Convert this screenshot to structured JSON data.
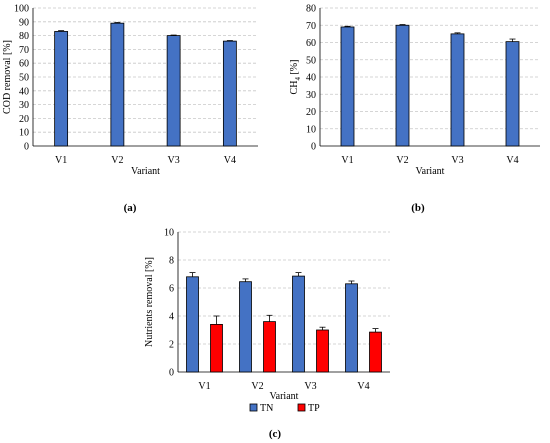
{
  "chart_data": [
    {
      "type": "bar",
      "panel_label": "(a)",
      "categories": [
        "V1",
        "V2",
        "V3",
        "V4"
      ],
      "values": [
        83,
        89,
        80,
        76
      ],
      "errors": [
        0.6,
        0.5,
        0.4,
        0.4
      ],
      "xlabel": "Variant",
      "ylabel": "COD removal [%]",
      "ylim": [
        0,
        100
      ],
      "ytick_step": 10,
      "grid": true,
      "color": "#4472C4"
    },
    {
      "type": "bar",
      "panel_label": "(b)",
      "categories": [
        "V1",
        "V2",
        "V3",
        "V4"
      ],
      "values": [
        69,
        70,
        65,
        60.5
      ],
      "errors": [
        0.4,
        0.4,
        0.6,
        1.5
      ],
      "xlabel": "Variant",
      "ylabel": "CH",
      "ylabel_sub": "4",
      "ylabel_suffix": " [%]",
      "ylim": [
        0,
        80
      ],
      "ytick_step": 10,
      "grid": true,
      "color": "#4472C4"
    },
    {
      "type": "bar",
      "panel_label": "(c)",
      "categories": [
        "V1",
        "V2",
        "V3",
        "V4"
      ],
      "series": [
        {
          "name": "TN",
          "values": [
            6.8,
            6.45,
            6.85,
            6.3
          ],
          "errors": [
            0.3,
            0.2,
            0.25,
            0.2
          ],
          "color": "#4472C4"
        },
        {
          "name": "TP",
          "values": [
            3.4,
            3.6,
            3.0,
            2.85
          ],
          "errors": [
            0.6,
            0.45,
            0.2,
            0.25
          ],
          "color": "#FF0000"
        }
      ],
      "xlabel": "Variant",
      "ylabel": "Nutrients removal [%]",
      "ylim": [
        0,
        10
      ],
      "ytick_step": 2,
      "grid": true,
      "legend": "bottom"
    }
  ]
}
